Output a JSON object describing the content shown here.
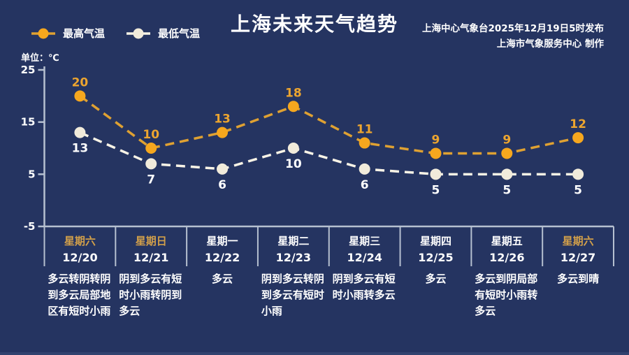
{
  "header": {
    "title": "上海未来天气趋势",
    "publisher_line1": "上海中心气象台2025年12月19日5时发布",
    "publisher_line2": "上海市气象服务中心 制作",
    "unit_label": "单位：℃"
  },
  "legend": {
    "items": [
      {
        "label": "最高气温",
        "line_color": "#dfa132",
        "marker_color": "#f6a71e"
      },
      {
        "label": "最低气温",
        "line_color": "#f8f3e6",
        "marker_color": "#f1ebdb"
      }
    ]
  },
  "chart_data": {
    "type": "line",
    "title": "上海未来天气趋势",
    "categories_weekday": [
      "星期六",
      "星期日",
      "星期一",
      "星期二",
      "星期三",
      "星期四",
      "星期五",
      "星期六"
    ],
    "categories_date": [
      "12/20",
      "12/21",
      "12/22",
      "12/23",
      "12/24",
      "12/25",
      "12/26",
      "12/27"
    ],
    "weekend_flags": [
      true,
      true,
      false,
      false,
      false,
      false,
      false,
      true
    ],
    "series": [
      {
        "name": "最高气温",
        "values": [
          20,
          10,
          13,
          18,
          11,
          9,
          9,
          12
        ],
        "line_color": "#dfa132",
        "marker_color": "#f6a71e",
        "label_color": "#eda52f"
      },
      {
        "name": "最低气温",
        "values": [
          13,
          7,
          6,
          10,
          6,
          5,
          5,
          5
        ],
        "line_color": "#f8f3e6",
        "marker_color": "#f1ebdb",
        "label_color": "#ffffff"
      }
    ],
    "forecasts": [
      "多云转阴转阴到多云局部地区有短时小雨",
      "阴到多云有短时小雨转阴到多云",
      "多云",
      "阴到多云转阴到多云有短时小雨",
      "阴到多云有短时小雨转多云",
      "多云",
      "多云到阴局部有短时小雨转多云",
      "多云到晴"
    ],
    "ylim": [
      -5,
      25
    ],
    "yticks": [
      25,
      15,
      5,
      -5
    ],
    "grid": false,
    "legend_position": "top-left",
    "axis_color": "#b6c0d0",
    "background_color": "#253461"
  }
}
